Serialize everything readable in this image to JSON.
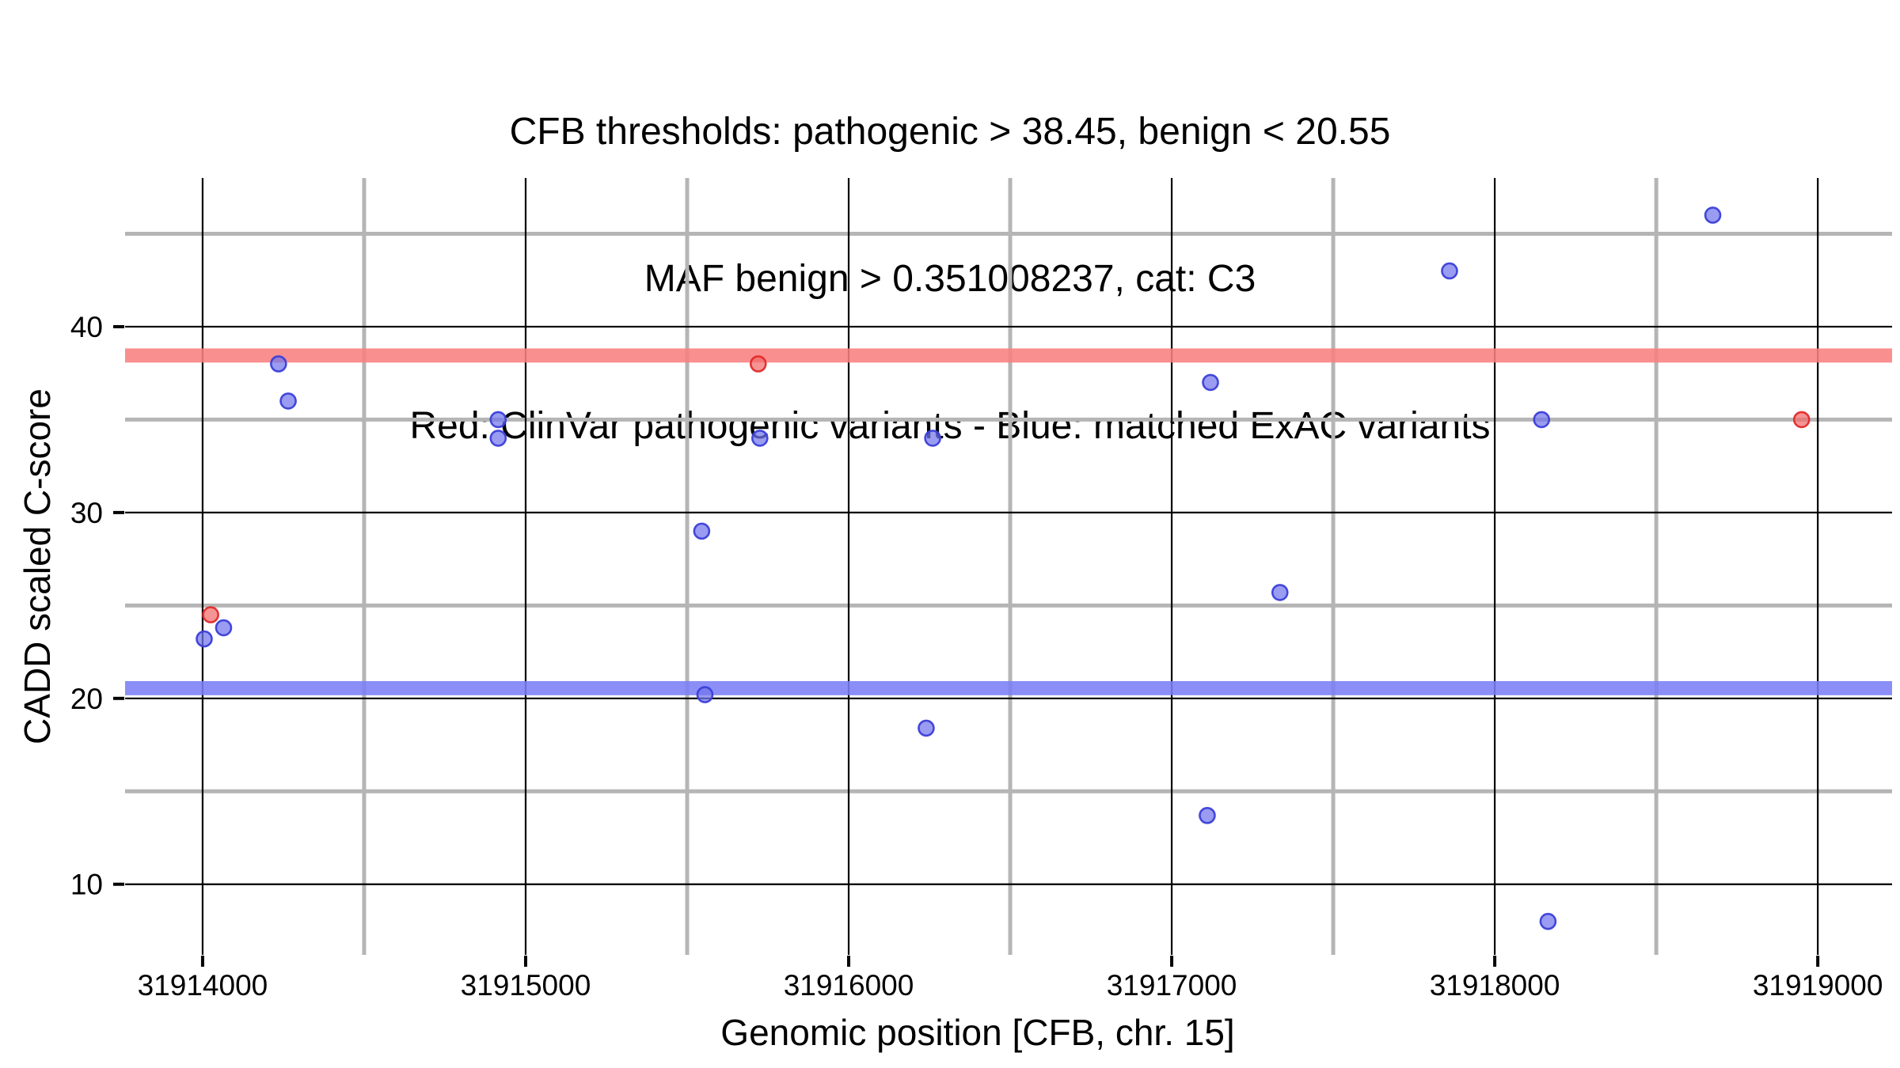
{
  "title": {
    "line1": "CFB thresholds: pathogenic > 38.45, benign < 20.55",
    "line2": "MAF benign > 0.351008237, cat: C3",
    "line3": "Red: ClinVar pathogenic variants - Blue: matched ExAC variants"
  },
  "chart_data": {
    "type": "scatter",
    "xlabel": "Genomic position [CFB, chr. 15]",
    "ylabel": "CADD scaled C-score",
    "xlim": [
      31913760,
      31919230
    ],
    "ylim": [
      6.2,
      48.0
    ],
    "x_major_ticks": [
      31914000,
      31915000,
      31916000,
      31917000,
      31918000,
      31919000
    ],
    "x_minor_gridlines": [
      31914500,
      31915500,
      31916500,
      31917500,
      31918500
    ],
    "y_major_ticks": [
      10,
      20,
      30,
      40
    ],
    "y_minor_gridlines": [
      15,
      25,
      35,
      45
    ],
    "grid": "major-dark-minor-gray",
    "legend_position": "none",
    "thresholds": {
      "pathogenic_cutoff": 38.45,
      "benign_cutoff": 20.55,
      "band_half_height": 0.38
    },
    "series": [
      {
        "name": "ClinVar pathogenic variants",
        "color_role": "red",
        "points": [
          [
            31914025,
            24.5
          ],
          [
            31915720,
            38.0
          ],
          [
            31918950,
            35.0
          ]
        ]
      },
      {
        "name": "matched ExAC variants",
        "color_role": "blue",
        "points": [
          [
            31914005,
            23.2
          ],
          [
            31914065,
            23.8
          ],
          [
            31914235,
            38.0
          ],
          [
            31914265,
            36.0
          ],
          [
            31914915,
            35.0
          ],
          [
            31914915,
            34.0
          ],
          [
            31915545,
            29.0
          ],
          [
            31915555,
            20.2
          ],
          [
            31915725,
            34.0
          ],
          [
            31916240,
            18.4
          ],
          [
            31916260,
            34.0
          ],
          [
            31917110,
            13.7
          ],
          [
            31917120,
            37.0
          ],
          [
            31917335,
            25.7
          ],
          [
            31917860,
            43.0
          ],
          [
            31918145,
            35.0
          ],
          [
            31918165,
            8.0
          ],
          [
            31918675,
            46.0
          ]
        ]
      }
    ]
  },
  "colors": {
    "pathogenic_band": "#F87F7F",
    "benign_band": "#7A7EF5",
    "red_point_fill": "#F26B6B",
    "red_point_stroke": "#E02B2B",
    "blue_point_fill": "#7276EC",
    "blue_point_stroke": "#3B3FD8",
    "major_grid": "#000000",
    "minor_grid": "#B5B5B5",
    "tick": "#000000",
    "text": "#000000",
    "background": "#FFFFFF"
  }
}
